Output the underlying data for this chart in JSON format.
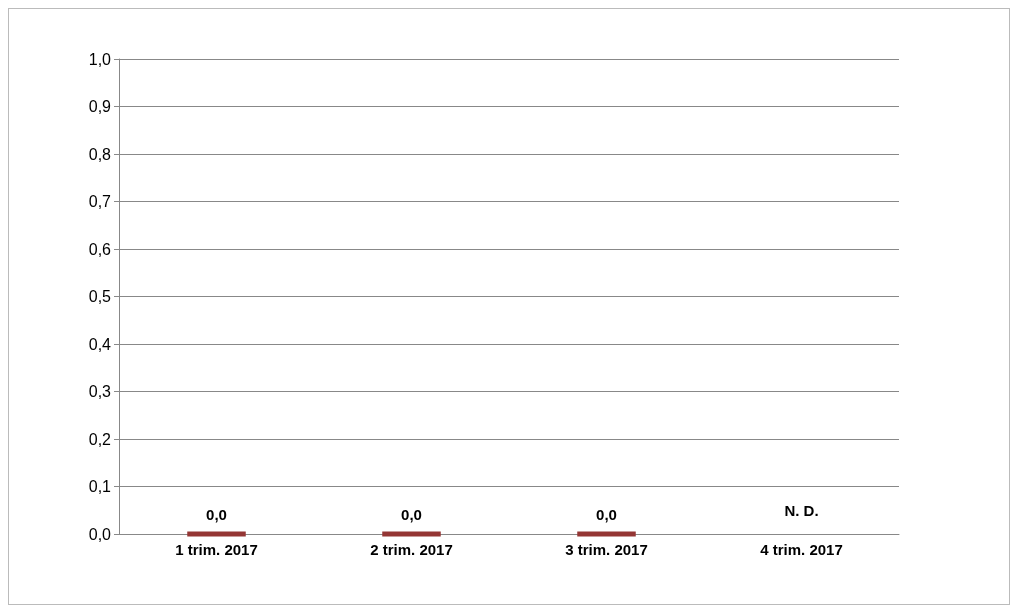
{
  "chart_data": {
    "type": "bar",
    "categories": [
      "1 trim. 2017",
      "2 trim. 2017",
      "3 trim. 2017",
      "4 trim. 2017"
    ],
    "series": [
      {
        "color": "#943634",
        "values": [
          0,
          0,
          0,
          null
        ],
        "value_labels": [
          "0,0",
          "0,0",
          "0,0",
          "N. D."
        ]
      }
    ],
    "ylim": [
      0,
      1
    ],
    "yticks": [
      {
        "value": 0,
        "label": "0,0"
      },
      {
        "value": 0.1,
        "label": "0,1"
      },
      {
        "value": 0.2,
        "label": "0,2"
      },
      {
        "value": 0.3,
        "label": "0,3"
      },
      {
        "value": 0.4,
        "label": "0,4"
      },
      {
        "value": 0.5,
        "label": "0,5"
      },
      {
        "value": 0.6,
        "label": "0,6"
      },
      {
        "value": 0.7,
        "label": "0,7"
      },
      {
        "value": 0.8,
        "label": "0,8"
      },
      {
        "value": 0.9,
        "label": "0,9"
      },
      {
        "value": 1,
        "label": "1,0"
      }
    ],
    "grid": true
  }
}
